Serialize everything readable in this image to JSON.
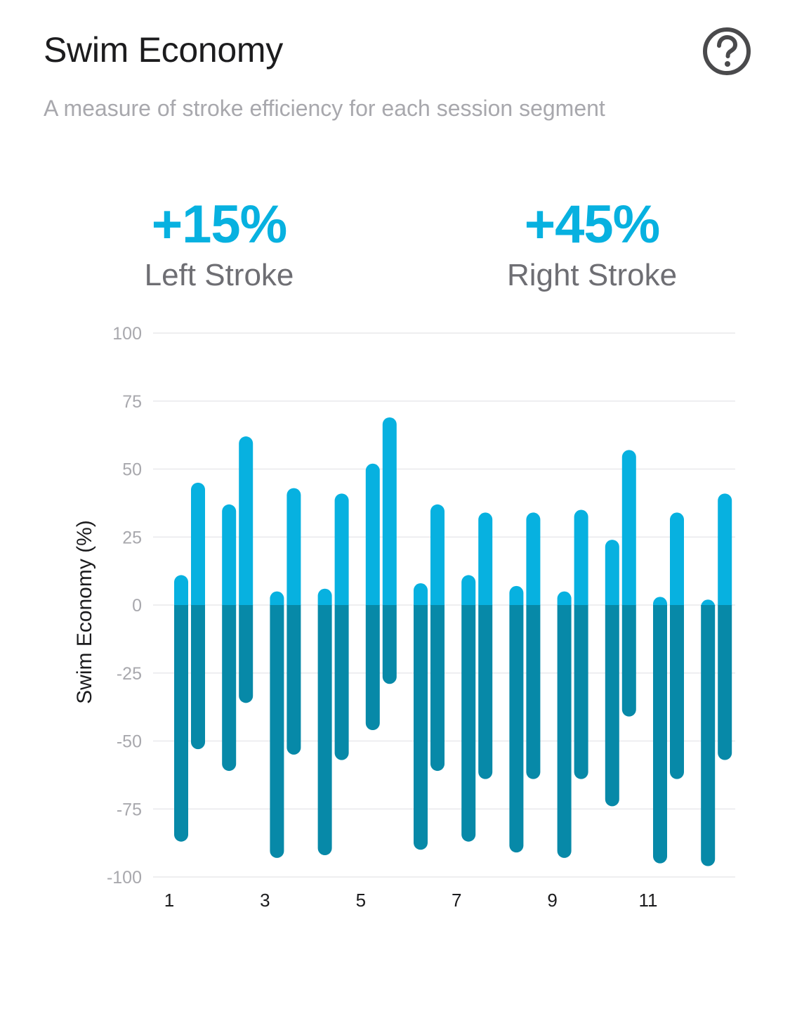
{
  "header": {
    "title": "Swim Economy",
    "subtitle": "A measure of stroke efficiency for each session segment",
    "help_icon": "question-circle-icon"
  },
  "stats": {
    "left": {
      "value": "+15%",
      "label": "Left Stroke"
    },
    "right": {
      "value": "+45%",
      "label": "Right Stroke"
    }
  },
  "colors": {
    "positive": "#07b1e0",
    "negative": "#0789a8",
    "grid": "#e9e9ec",
    "accent": "#07b1e0"
  },
  "chart_data": {
    "type": "bar",
    "ylabel": "Swim Economy (%)",
    "xlabel": "",
    "ylim": [
      -100,
      100
    ],
    "yticks": [
      100,
      75,
      50,
      25,
      0,
      -25,
      -50,
      -75,
      -100
    ],
    "x_tick_labels": [
      "1",
      "3",
      "5",
      "7",
      "9",
      "11"
    ],
    "x_tick_segments": [
      1,
      3,
      5,
      7,
      9,
      11
    ],
    "grid": true,
    "segments": [
      {
        "segment": 1,
        "left": [
          -87,
          11
        ],
        "right": [
          -53,
          45
        ]
      },
      {
        "segment": 2,
        "left": [
          -61,
          37
        ],
        "right": [
          -36,
          62
        ]
      },
      {
        "segment": 3,
        "left": [
          -93,
          5
        ],
        "right": [
          -55,
          43
        ]
      },
      {
        "segment": 4,
        "left": [
          -92,
          6
        ],
        "right": [
          -57,
          41
        ]
      },
      {
        "segment": 5,
        "left": [
          -46,
          52
        ],
        "right": [
          -29,
          69
        ]
      },
      {
        "segment": 6,
        "left": [
          -90,
          8
        ],
        "right": [
          -61,
          37
        ]
      },
      {
        "segment": 7,
        "left": [
          -87,
          11
        ],
        "right": [
          -64,
          34
        ]
      },
      {
        "segment": 8,
        "left": [
          -91,
          7
        ],
        "right": [
          -64,
          34
        ]
      },
      {
        "segment": 9,
        "left": [
          -93,
          5
        ],
        "right": [
          -64,
          35
        ]
      },
      {
        "segment": 10,
        "left": [
          -74,
          24
        ],
        "right": [
          -41,
          57
        ]
      },
      {
        "segment": 11,
        "left": [
          -95,
          3
        ],
        "right": [
          -64,
          34
        ]
      },
      {
        "segment": 12,
        "left": [
          -96,
          2
        ],
        "right": [
          -57,
          41
        ]
      }
    ]
  }
}
